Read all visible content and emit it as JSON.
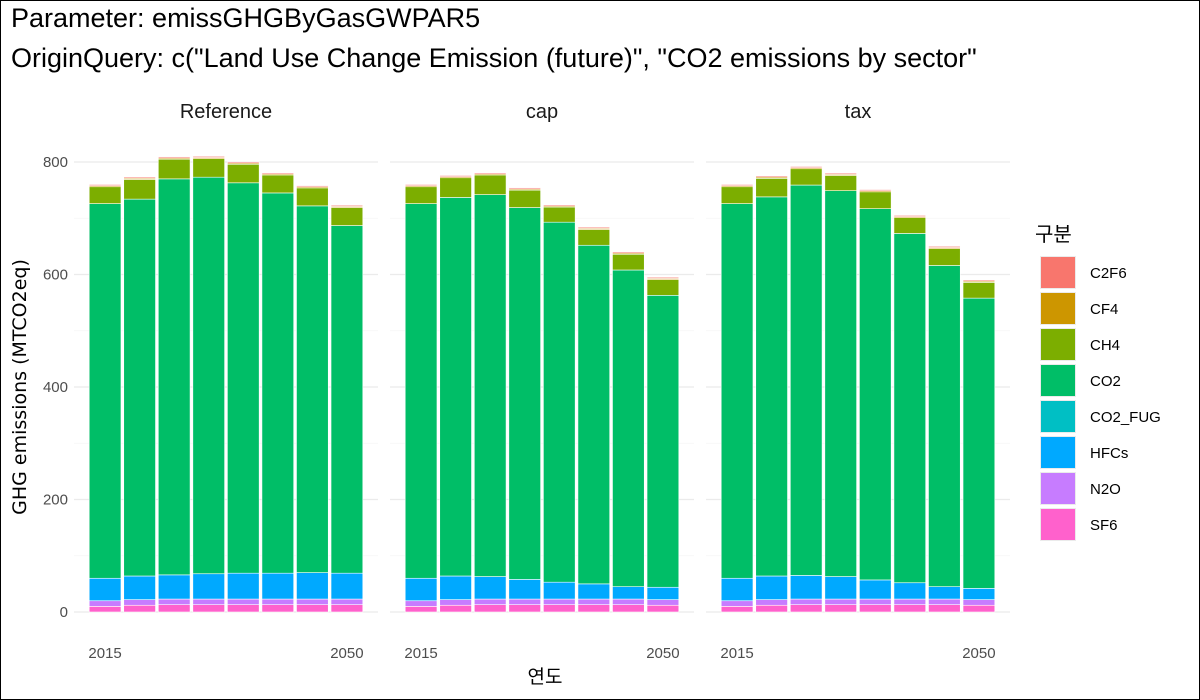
{
  "title_line1": "Parameter: emissGHGByGasGWPAR5",
  "title_line2": "OriginQuery: c(\"Land Use Change Emission (future)\", \"CO2 emissions by sector\"",
  "chart_data": {
    "type": "bar",
    "stacked": true,
    "facets": [
      "Reference",
      "cap",
      "tax"
    ],
    "x": [
      2015,
      2020,
      2025,
      2030,
      2035,
      2040,
      2045,
      2050
    ],
    "xticks": [
      "2015",
      "2050"
    ],
    "xlabel": "연도",
    "ylabel": "GHG emissions (MTCO2eq)",
    "ylim": [
      0,
      830
    ],
    "yticks": [
      0,
      200,
      400,
      600,
      800
    ],
    "legend_title": "구분",
    "legend_position": "right",
    "colors": {
      "C2F6": "#F8766D",
      "CF4": "#CD9600",
      "CH4": "#7CAE00",
      "CO2": "#00BE67",
      "CO2_FUG": "#00BFC4",
      "HFCs": "#00A9FF",
      "N2O": "#C77CFF",
      "SF6": "#FF61CC"
    },
    "series_order": [
      "C2F6",
      "CF4",
      "CH4",
      "CO2",
      "CO2_FUG",
      "HFCs",
      "N2O",
      "SF6"
    ],
    "data": {
      "Reference": {
        "SF6": [
          10,
          12,
          13,
          13,
          13,
          13,
          13,
          13
        ],
        "N2O": [
          10,
          10,
          10,
          10,
          10,
          10,
          10,
          10
        ],
        "HFCs": [
          40,
          42,
          43,
          45,
          46,
          46,
          47,
          46
        ],
        "CO2_FUG": [
          0,
          0,
          0,
          0,
          0,
          0,
          0,
          0
        ],
        "CO2": [
          666,
          670,
          704,
          705,
          694,
          676,
          652,
          618
        ],
        "CH4": [
          30,
          35,
          35,
          33,
          33,
          32,
          32,
          32
        ],
        "CF4": [
          2,
          2,
          2,
          2,
          2,
          2,
          2,
          2
        ],
        "C2F6": [
          2,
          2,
          2,
          2,
          2,
          2,
          2,
          2
        ]
      },
      "cap": {
        "SF6": [
          10,
          12,
          13,
          13,
          13,
          13,
          13,
          12
        ],
        "N2O": [
          10,
          10,
          10,
          10,
          10,
          10,
          10,
          10
        ],
        "HFCs": [
          40,
          42,
          40,
          35,
          30,
          27,
          22,
          22
        ],
        "CO2_FUG": [
          0,
          0,
          0,
          0,
          0,
          0,
          0,
          0
        ],
        "CO2": [
          666,
          673,
          679,
          661,
          640,
          602,
          563,
          519
        ],
        "CH4": [
          30,
          35,
          35,
          31,
          27,
          28,
          28,
          28
        ],
        "CF4": [
          2,
          2,
          2,
          2,
          2,
          2,
          2,
          2
        ],
        "C2F6": [
          2,
          2,
          2,
          2,
          2,
          2,
          2,
          2
        ]
      },
      "tax": {
        "SF6": [
          10,
          12,
          13,
          13,
          13,
          13,
          13,
          12
        ],
        "N2O": [
          10,
          10,
          10,
          10,
          10,
          10,
          10,
          10
        ],
        "HFCs": [
          40,
          42,
          42,
          40,
          34,
          29,
          22,
          20
        ],
        "CO2_FUG": [
          0,
          0,
          0,
          0,
          0,
          0,
          0,
          0
        ],
        "CO2": [
          666,
          674,
          694,
          686,
          660,
          621,
          571,
          516
        ],
        "CH4": [
          30,
          33,
          29,
          27,
          30,
          28,
          30,
          28
        ],
        "CF4": [
          2,
          2,
          2,
          2,
          2,
          2,
          2,
          2
        ],
        "C2F6": [
          2,
          2,
          2,
          2,
          2,
          2,
          2,
          2
        ]
      }
    }
  }
}
